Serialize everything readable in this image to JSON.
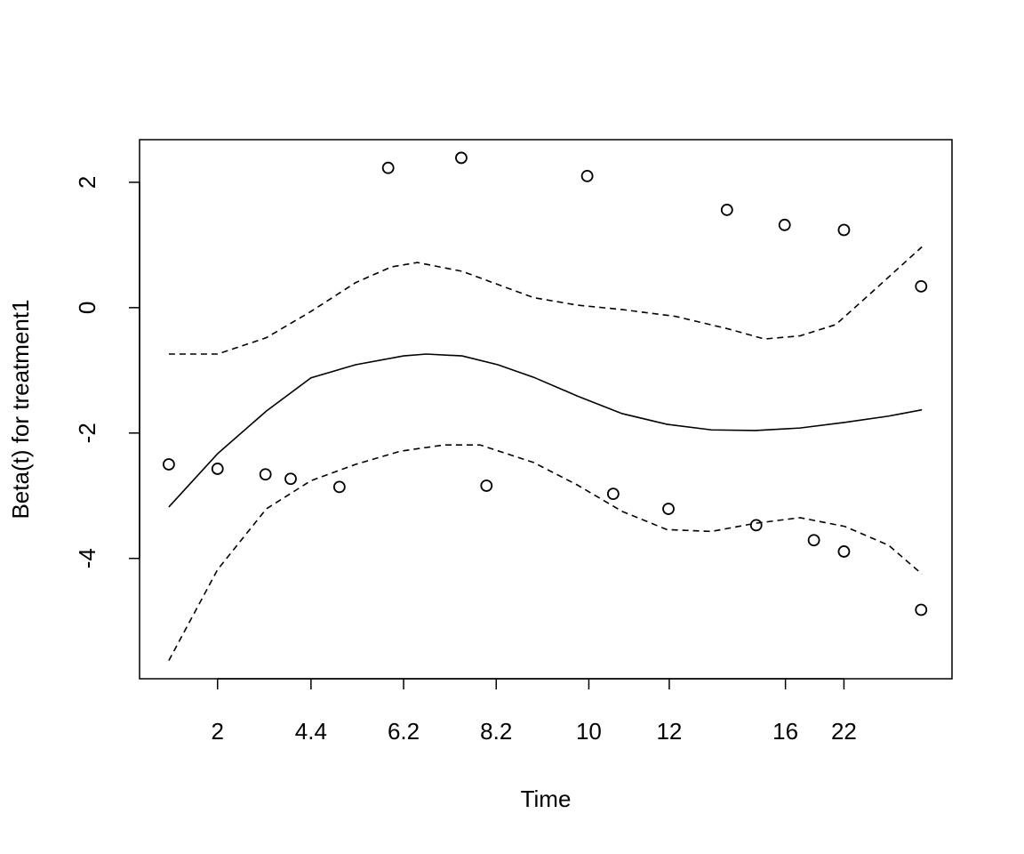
{
  "chart_data": {
    "type": "scatter",
    "xlabel": "Time",
    "ylabel": "Beta(t) for treatment1",
    "xlim": [
      0,
      1
    ],
    "ylim": [
      -5.92,
      2.68
    ],
    "xticks": [
      {
        "value": 0.096,
        "label": "2"
      },
      {
        "value": 0.211,
        "label": "4.4"
      },
      {
        "value": 0.325,
        "label": "6.2"
      },
      {
        "value": 0.439,
        "label": "8.2"
      },
      {
        "value": 0.553,
        "label": "10"
      },
      {
        "value": 0.652,
        "label": "12"
      },
      {
        "value": 0.795,
        "label": "16"
      },
      {
        "value": 0.867,
        "label": "22"
      }
    ],
    "yticks": [
      -4,
      -2,
      0,
      2
    ],
    "color": "#000000",
    "series": [
      {
        "style": "points",
        "x": [
          0.036,
          0.096,
          0.155,
          0.186,
          0.246,
          0.306,
          0.396,
          0.427,
          0.551,
          0.583,
          0.651,
          0.723,
          0.759,
          0.794,
          0.83,
          0.867,
          0.867,
          0.962,
          0.962
        ],
        "values": [
          -2.5,
          -2.57,
          -2.66,
          -2.73,
          -2.86,
          2.23,
          2.39,
          -2.84,
          2.1,
          -2.97,
          -3.21,
          1.56,
          -3.47,
          1.32,
          -3.71,
          1.24,
          -3.89,
          0.34,
          -4.82
        ]
      },
      {
        "style": "solid",
        "x": [
          0.036,
          0.096,
          0.156,
          0.211,
          0.266,
          0.325,
          0.353,
          0.397,
          0.441,
          0.485,
          0.539,
          0.594,
          0.649,
          0.704,
          0.758,
          0.813,
          0.868,
          0.922,
          0.963
        ],
        "values": [
          -3.18,
          -2.33,
          -1.65,
          -1.12,
          -0.91,
          -0.77,
          -0.74,
          -0.77,
          -0.91,
          -1.11,
          -1.41,
          -1.69,
          -1.86,
          -1.95,
          -1.96,
          -1.92,
          -1.83,
          -1.73,
          -1.63
        ]
      },
      {
        "style": "dashed",
        "x": [
          0.036,
          0.096,
          0.156,
          0.211,
          0.266,
          0.31,
          0.342,
          0.397,
          0.441,
          0.485,
          0.539,
          0.594,
          0.66,
          0.725,
          0.769,
          0.813,
          0.857,
          0.9,
          0.963
        ],
        "values": [
          -0.74,
          -0.74,
          -0.48,
          -0.06,
          0.4,
          0.65,
          0.72,
          0.58,
          0.37,
          0.16,
          0.04,
          -0.03,
          -0.14,
          -0.34,
          -0.5,
          -0.45,
          -0.27,
          0.23,
          0.97
        ]
      },
      {
        "style": "dashed",
        "x": [
          0.036,
          0.096,
          0.156,
          0.211,
          0.266,
          0.321,
          0.375,
          0.419,
          0.485,
          0.539,
          0.594,
          0.649,
          0.704,
          0.758,
          0.813,
          0.868,
          0.922,
          0.963
        ],
        "values": [
          -5.63,
          -4.18,
          -3.21,
          -2.76,
          -2.5,
          -2.29,
          -2.19,
          -2.19,
          -2.47,
          -2.83,
          -3.25,
          -3.54,
          -3.57,
          -3.44,
          -3.35,
          -3.49,
          -3.79,
          -4.25
        ]
      }
    ]
  }
}
